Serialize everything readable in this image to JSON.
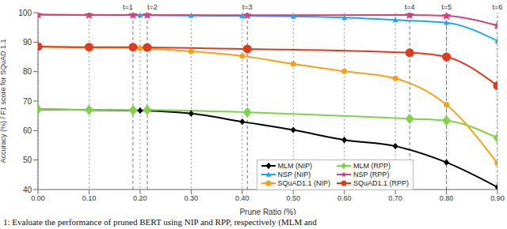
{
  "chart_data": {
    "type": "line",
    "xlabel": "Prune Ratio (%)",
    "ylabel": "Accuracy (%) / F1 score for SQuAD 1.1",
    "caption": "1: Evaluate the performance of pruned BERT using NIP and RPP, respectively (MLM and",
    "xlim": [
      0,
      0.9
    ],
    "xticks": [
      {
        "value": 0,
        "label": "0.00"
      },
      {
        "value": 0.1,
        "label": "0.10"
      },
      {
        "value": 0.2,
        "label": "0.20"
      },
      {
        "value": 0.3,
        "label": "0.30"
      },
      {
        "value": 0.4,
        "label": "0.40"
      },
      {
        "value": 0.5,
        "label": "0.50"
      },
      {
        "value": 0.6,
        "label": "0.60"
      },
      {
        "value": 0.7,
        "label": "0.70"
      },
      {
        "value": 0.8,
        "label": "0.80"
      },
      {
        "value": 0.9,
        "label": "0.90"
      }
    ],
    "ylim": [
      40,
      100
    ],
    "yticks": [
      40,
      50,
      60,
      70,
      80,
      90,
      100
    ],
    "grid": true,
    "legend": "lower center",
    "annotations": [
      {
        "x": 0.186,
        "label": "t=1"
      },
      {
        "x": 0.214,
        "label": "t=2"
      },
      {
        "x": 0.41,
        "label": "t=3"
      },
      {
        "x": 0.728,
        "label": "t=4"
      },
      {
        "x": 0.8,
        "label": "t=5"
      },
      {
        "x": 0.9,
        "label": "t=6"
      }
    ],
    "series": [
      {
        "name": "MLM (NIP)",
        "color": "#000000",
        "marker": "diamond",
        "x": [
          0,
          0.1,
          0.2,
          0.3,
          0.4,
          0.5,
          0.6,
          0.7,
          0.8,
          0.9
        ],
        "values": [
          67.2,
          67.0,
          66.8,
          65.8,
          63.0,
          60.2,
          56.8,
          54.7,
          49.2,
          40.8
        ]
      },
      {
        "name": "MLM (RPP)",
        "color": "#7ed348",
        "marker": "diamond",
        "x": [
          0,
          0.1,
          0.186,
          0.214,
          0.41,
          0.728,
          0.8,
          0.9
        ],
        "values": [
          67.2,
          67.0,
          66.9,
          67.0,
          66.2,
          64.0,
          63.4,
          57.5
        ]
      },
      {
        "name": "NSP (NIP)",
        "color": "#1ea7f0",
        "marker": "triangle",
        "x": [
          0,
          0.1,
          0.2,
          0.3,
          0.4,
          0.5,
          0.6,
          0.7,
          0.8,
          0.9
        ],
        "values": [
          99.3,
          99.2,
          99.1,
          99.0,
          98.9,
          98.7,
          98.3,
          97.5,
          96.6,
          90.4
        ]
      },
      {
        "name": "NSP (RPP)",
        "color": "#d6437a",
        "marker": "star",
        "x": [
          0,
          0.1,
          0.186,
          0.214,
          0.41,
          0.728,
          0.8,
          0.9
        ],
        "values": [
          99.3,
          99.2,
          99.2,
          99.2,
          99.1,
          99.2,
          98.9,
          95.6
        ]
      },
      {
        "name": "SQuAD1.1 (NIP)",
        "color": "#f6a01a",
        "marker": "circle",
        "x": [
          0,
          0.1,
          0.2,
          0.3,
          0.4,
          0.5,
          0.6,
          0.7,
          0.8,
          0.9
        ],
        "values": [
          88.5,
          88.2,
          87.9,
          86.9,
          85.3,
          82.6,
          80.1,
          77.7,
          68.8,
          48.9
        ]
      },
      {
        "name": "SQuAD1.1 (RPP)",
        "color": "#e03a1d",
        "marker": "circle",
        "x": [
          0,
          0.1,
          0.186,
          0.214,
          0.41,
          0.728,
          0.8,
          0.9
        ],
        "values": [
          88.5,
          88.3,
          88.3,
          88.2,
          87.7,
          86.4,
          85.0,
          75.2
        ]
      }
    ]
  }
}
